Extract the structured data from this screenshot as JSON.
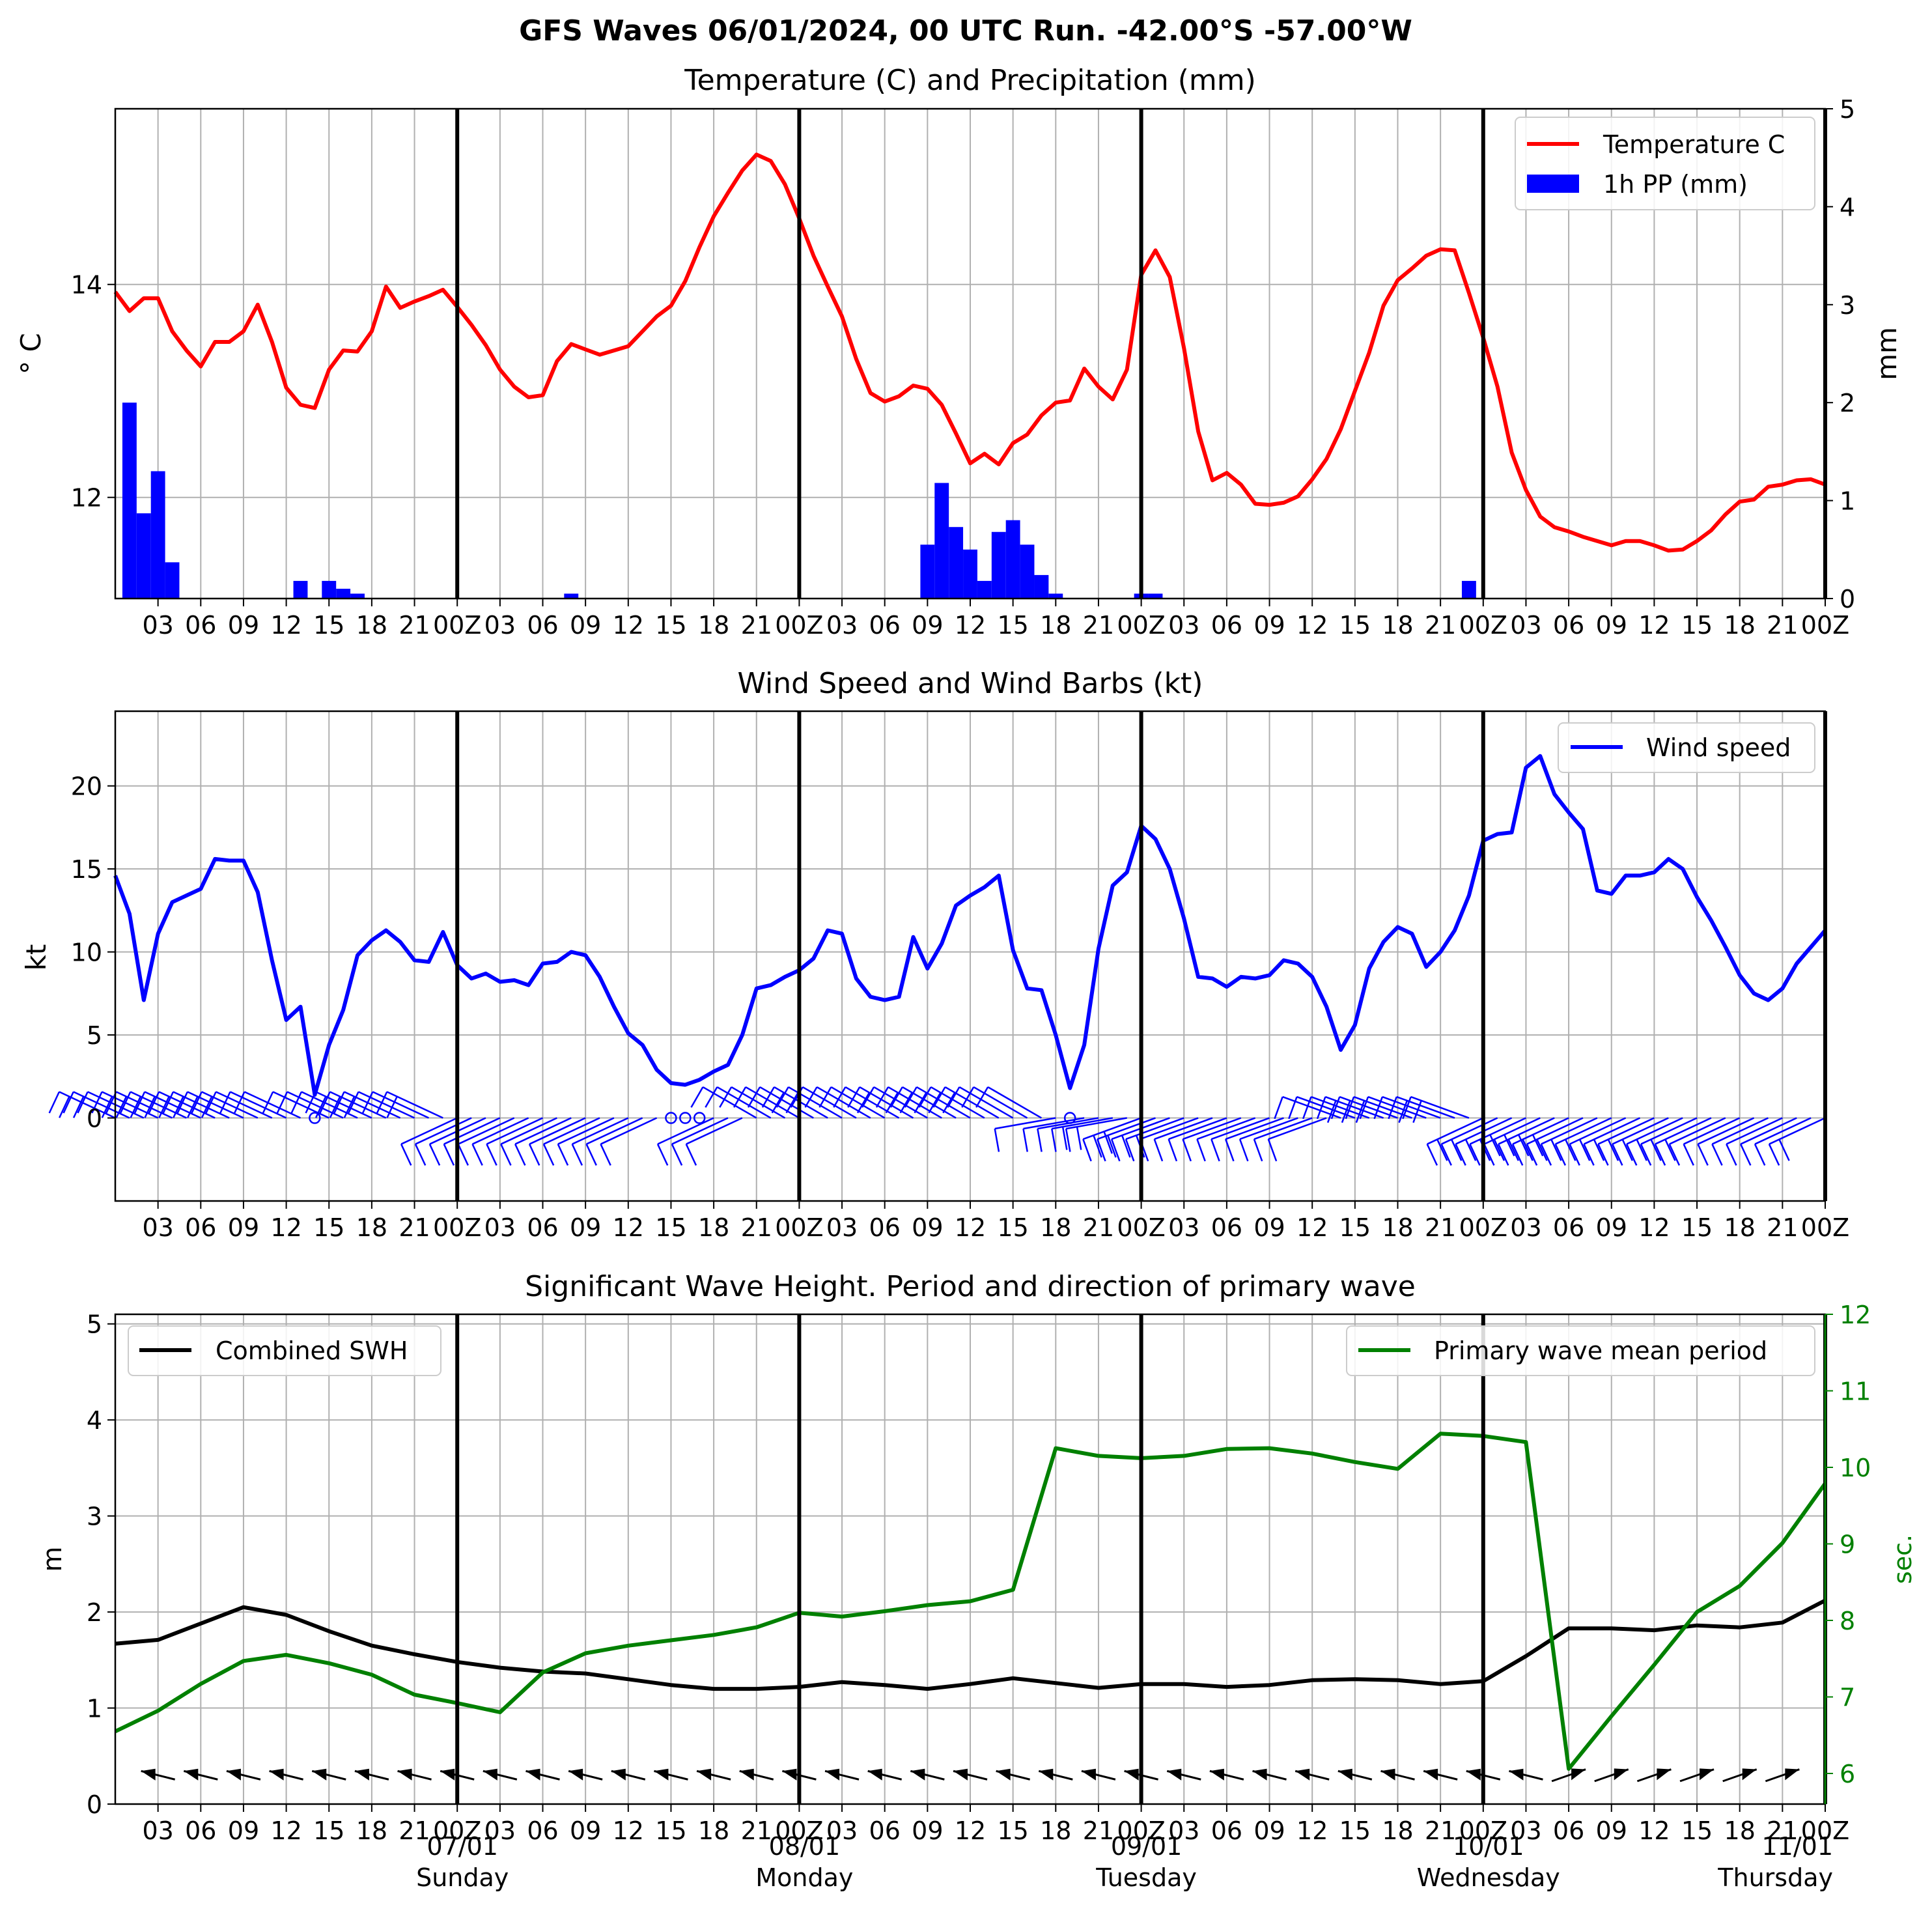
{
  "figure": {
    "title": "GFS Waves 06/01/2024, 00 UTC Run. -42.00°S -57.00°W"
  },
  "time_axis": {
    "hours_total": 120,
    "tick_labels": [
      "03",
      "06",
      "09",
      "12",
      "15",
      "18",
      "21",
      "00Z",
      "03",
      "06",
      "09",
      "12",
      "15",
      "18",
      "21",
      "00Z",
      "03",
      "06",
      "09",
      "12",
      "15",
      "18",
      "21",
      "00Z",
      "03",
      "06",
      "09",
      "12",
      "15",
      "18",
      "21",
      "00Z",
      "03",
      "06",
      "09",
      "12",
      "15",
      "18",
      "21",
      "00Z"
    ],
    "day_labels": [
      {
        "date": "07/01",
        "weekday": "Sunday"
      },
      {
        "date": "08/01",
        "weekday": "Monday"
      },
      {
        "date": "09/01",
        "weekday": "Tuesday"
      },
      {
        "date": "10/01",
        "weekday": "Wednesday"
      },
      {
        "date": "11/01",
        "weekday": "Thursday"
      }
    ]
  },
  "chart_data": [
    {
      "type": "line",
      "title": "Temperature (C) and Precipitation (mm)",
      "ylabel": "° C",
      "ylabel2": "mm",
      "ylim": [
        11.05,
        15.65
      ],
      "ylim2": [
        0,
        5
      ],
      "yticks": [
        "12",
        "14"
      ],
      "yticks2": [
        "0",
        "1",
        "2",
        "3",
        "4",
        "5"
      ],
      "legend": [
        "Temperature C",
        "1h PP (mm)"
      ],
      "colors": {
        "temperature": "#ff0000",
        "precip": "#0000ff"
      },
      "temperature": {
        "name": "Temperature C",
        "x": [
          0,
          1,
          2,
          3,
          4,
          5,
          6,
          7,
          8,
          9,
          10,
          11,
          12,
          13,
          14,
          15,
          16,
          17,
          18,
          19,
          20,
          21,
          22,
          23,
          24,
          25,
          26,
          27,
          28,
          29,
          30,
          31,
          32,
          33,
          34,
          35,
          36,
          37,
          38,
          39,
          40,
          41,
          42,
          43,
          44,
          45,
          46,
          47,
          48,
          49,
          50,
          51,
          52,
          53,
          54,
          55,
          56,
          57,
          58,
          59,
          60,
          61,
          62,
          63,
          64,
          65,
          66,
          67,
          68,
          69,
          70,
          71,
          72,
          73,
          74,
          75,
          76,
          77,
          78,
          79,
          80,
          81,
          82,
          83,
          84,
          85,
          86,
          87,
          88,
          89,
          90,
          91,
          92,
          93,
          94,
          95,
          96,
          97,
          98,
          99,
          100,
          101,
          102,
          103,
          104,
          105,
          106,
          107,
          108,
          109,
          110,
          111,
          112,
          113,
          114,
          115,
          116,
          117,
          118,
          119,
          120
        ],
        "values": [
          13.93,
          13.75,
          13.87,
          13.87,
          13.56,
          13.38,
          13.23,
          13.46,
          13.46,
          13.56,
          13.81,
          13.46,
          13.03,
          12.87,
          12.84,
          13.2,
          13.38,
          13.37,
          13.56,
          13.98,
          13.78,
          13.84,
          13.89,
          13.95,
          13.79,
          13.62,
          13.43,
          13.2,
          13.04,
          12.94,
          12.96,
          13.28,
          13.44,
          13.39,
          13.34,
          13.38,
          13.42,
          13.56,
          13.7,
          13.8,
          14.03,
          14.35,
          14.64,
          14.86,
          15.07,
          15.22,
          15.16,
          14.94,
          14.62,
          14.27,
          13.98,
          13.7,
          13.3,
          12.98,
          12.9,
          12.95,
          13.05,
          13.02,
          12.87,
          12.6,
          12.32,
          12.41,
          12.31,
          12.51,
          12.59,
          12.77,
          12.89,
          12.91,
          13.21,
          13.04,
          12.92,
          13.2,
          14.09,
          14.32,
          14.07,
          13.4,
          12.62,
          12.16,
          12.23,
          12.12,
          11.94,
          11.93,
          11.95,
          12.01,
          12.17,
          12.36,
          12.64,
          13.0,
          13.36,
          13.8,
          14.04,
          14.15,
          14.27,
          14.33,
          14.32,
          13.92,
          13.5,
          13.04,
          12.42,
          12.07,
          11.82,
          11.72,
          11.68,
          11.63,
          11.59,
          11.55,
          11.59,
          11.59,
          11.55,
          11.5,
          11.51,
          11.59,
          11.69,
          11.84,
          11.96,
          11.98,
          12.1,
          12.12,
          12.16,
          12.17,
          12.12
        ]
      },
      "precip": {
        "name": "1h PP (mm)",
        "x": [
          1,
          2,
          3,
          4,
          13,
          15,
          16,
          17,
          32,
          57,
          58,
          59,
          60,
          61,
          62,
          63,
          64,
          65,
          66,
          72,
          73,
          95
        ],
        "values": [
          2.0,
          0.87,
          1.3,
          0.37,
          0.18,
          0.18,
          0.1,
          0.05,
          0.05,
          0.55,
          1.18,
          0.73,
          0.5,
          0.18,
          0.68,
          0.8,
          0.55,
          0.24,
          0.05,
          0.05,
          0.05,
          0.18
        ]
      }
    },
    {
      "type": "line",
      "title": "Wind Speed and Wind Barbs (kt)",
      "ylabel": "kt",
      "ylim": [
        -5,
        24.5
      ],
      "yticks": [
        "0",
        "5",
        "10",
        "15",
        "20"
      ],
      "legend": [
        "Wind speed"
      ],
      "colors": {
        "wind": "#0000ff"
      },
      "series": [
        {
          "name": "Wind speed",
          "x": [
            0,
            1,
            2,
            3,
            4,
            5,
            6,
            7,
            8,
            9,
            10,
            11,
            12,
            13,
            14,
            15,
            16,
            17,
            18,
            19,
            20,
            21,
            22,
            23,
            24,
            25,
            26,
            27,
            28,
            29,
            30,
            31,
            32,
            33,
            34,
            35,
            36,
            37,
            38,
            39,
            40,
            41,
            42,
            43,
            44,
            45,
            46,
            47,
            48,
            49,
            50,
            51,
            52,
            53,
            54,
            55,
            56,
            57,
            58,
            59,
            60,
            61,
            62,
            63,
            64,
            65,
            66,
            67,
            68,
            69,
            70,
            71,
            72,
            73,
            74,
            75,
            76,
            77,
            78,
            79,
            80,
            81,
            82,
            83,
            84,
            85,
            86,
            87,
            88,
            89,
            90,
            91,
            92,
            93,
            94,
            95,
            96,
            97,
            98,
            99,
            100,
            101,
            102,
            103,
            104,
            105,
            106,
            107,
            108,
            109,
            110,
            111,
            112,
            113,
            114,
            115,
            116,
            117,
            118,
            119,
            120
          ],
          "values": [
            14.6,
            12.3,
            7.1,
            11.1,
            13.0,
            13.4,
            13.8,
            15.6,
            15.5,
            15.5,
            13.6,
            9.5,
            5.9,
            6.7,
            1.4,
            4.4,
            6.5,
            9.8,
            10.7,
            11.3,
            10.6,
            9.5,
            9.4,
            11.2,
            9.2,
            8.4,
            8.7,
            8.2,
            8.3,
            8.0,
            9.3,
            9.4,
            10.0,
            9.8,
            8.5,
            6.7,
            5.1,
            4.4,
            2.9,
            2.1,
            2.0,
            2.3,
            2.8,
            3.2,
            5.0,
            7.8,
            8.0,
            8.5,
            8.9,
            9.6,
            11.3,
            11.1,
            8.4,
            7.3,
            7.1,
            7.3,
            10.9,
            9.0,
            10.5,
            12.8,
            13.4,
            13.9,
            14.6,
            10.1,
            7.8,
            7.7,
            5.0,
            1.8,
            4.4,
            10.2,
            14.0,
            14.8,
            17.6,
            16.8,
            15.0,
            12.0,
            8.5,
            8.4,
            7.9,
            8.5,
            8.4,
            8.6,
            9.5,
            9.3,
            8.5,
            6.7,
            4.1,
            5.6,
            9.0,
            10.6,
            11.5,
            11.1,
            9.1,
            10.0,
            11.3,
            13.4,
            16.7,
            17.1,
            17.2,
            21.1,
            21.8,
            19.5,
            18.4,
            17.4,
            13.7,
            13.5,
            14.6,
            14.6,
            14.8,
            15.6,
            15.0,
            13.3,
            11.9,
            10.3,
            8.6,
            7.5,
            7.1,
            7.8,
            9.3,
            10.3,
            11.3
          ]
        }
      ],
      "barbs_note": "wind barbs drawn along the zero line"
    },
    {
      "type": "line",
      "title": "Significant Wave Height. Period and direction of primary wave",
      "ylabel": "m",
      "ylabel2": "sec.",
      "ylim": [
        0,
        5.1
      ],
      "ylim2": [
        5.6,
        12
      ],
      "yticks": [
        "0",
        "1",
        "2",
        "3",
        "4",
        "5"
      ],
      "yticks2": [
        "6",
        "7",
        "8",
        "9",
        "10",
        "11",
        "12"
      ],
      "legend": [
        "Combined SWH",
        "Primary wave mean period"
      ],
      "colors": {
        "swh": "#000000",
        "period": "#008000"
      },
      "series": [
        {
          "name": "Combined SWH",
          "x": [
            0,
            3,
            6,
            9,
            12,
            15,
            18,
            21,
            24,
            27,
            30,
            33,
            36,
            39,
            42,
            45,
            48,
            51,
            54,
            57,
            60,
            63,
            66,
            69,
            72,
            75,
            78,
            81,
            84,
            87,
            90,
            93,
            96,
            99,
            102,
            105,
            108,
            111,
            114,
            117,
            120
          ],
          "values": [
            1.67,
            1.71,
            1.88,
            2.05,
            1.97,
            1.8,
            1.65,
            1.56,
            1.48,
            1.42,
            1.38,
            1.36,
            1.3,
            1.24,
            1.2,
            1.2,
            1.22,
            1.27,
            1.24,
            1.2,
            1.25,
            1.31,
            1.26,
            1.21,
            1.25,
            1.25,
            1.22,
            1.24,
            1.29,
            1.3,
            1.29,
            1.25,
            1.28,
            1.54,
            1.83,
            1.83,
            1.81,
            1.86,
            1.84,
            1.89,
            2.12
          ]
        },
        {
          "name": "Primary wave mean period",
          "x": [
            0,
            3,
            6,
            9,
            12,
            15,
            18,
            21,
            24,
            27,
            30,
            33,
            36,
            39,
            42,
            45,
            48,
            51,
            54,
            57,
            60,
            63,
            66,
            69,
            72,
            75,
            78,
            81,
            84,
            87,
            90,
            93,
            96,
            99,
            102,
            105,
            108,
            111,
            114,
            117,
            120
          ],
          "values": [
            6.55,
            6.82,
            7.17,
            7.47,
            7.55,
            7.44,
            7.29,
            7.03,
            6.92,
            6.8,
            7.32,
            7.57,
            7.67,
            7.74,
            7.81,
            7.91,
            8.1,
            8.05,
            8.12,
            8.2,
            8.25,
            8.4,
            10.25,
            10.15,
            10.12,
            10.15,
            10.24,
            10.25,
            10.18,
            10.07,
            9.98,
            10.44,
            10.41,
            10.33,
            6.06,
            6.75,
            7.42,
            8.11,
            8.45,
            9.01,
            9.79
          ]
        }
      ],
      "arrows_note": "primary wave direction arrows near SWH 0.3 m"
    }
  ]
}
